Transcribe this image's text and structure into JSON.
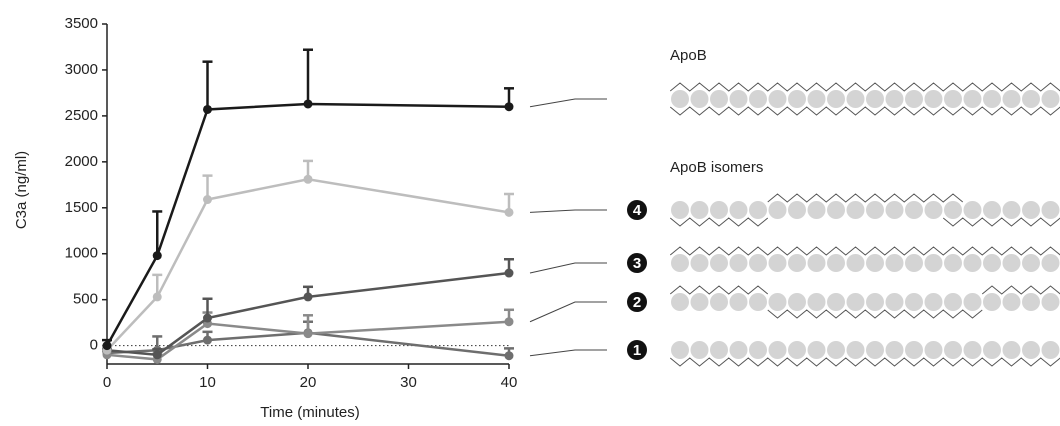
{
  "chart_data": {
    "type": "line",
    "ylabel": "C3a (ng/ml)",
    "xlabel": "Time (minutes)",
    "x": [
      0,
      5,
      10,
      20,
      40
    ],
    "xlim": [
      0,
      40
    ],
    "xticks": [
      0,
      10,
      20,
      30,
      40
    ],
    "ylim": [
      -200,
      3500
    ],
    "yticks": [
      0,
      500,
      1000,
      1500,
      2000,
      2500,
      3000,
      3500
    ],
    "zero_line": true,
    "isomers_label": "ApoB isomers",
    "series": [
      {
        "name": "ApoB",
        "color": "#1a1a1a",
        "values": [
          0,
          980,
          2570,
          2630,
          2600
        ],
        "errors": [
          60,
          480,
          520,
          590,
          200
        ]
      },
      {
        "badge": "4",
        "color": "#bdbdbd",
        "values": [
          -50,
          530,
          1590,
          1810,
          1450
        ],
        "errors": [
          40,
          240,
          260,
          200,
          200
        ]
      },
      {
        "badge": "3",
        "color": "#555555",
        "values": [
          -50,
          -100,
          300,
          530,
          790
        ],
        "errors": [
          40,
          60,
          210,
          110,
          150
        ]
      },
      {
        "badge": "2",
        "color": "#8a8a8a",
        "values": [
          -100,
          -150,
          240,
          130,
          260
        ],
        "errors": [
          40,
          60,
          120,
          200,
          130
        ]
      },
      {
        "badge": "1",
        "color": "#6e6e6e",
        "values": [
          -80,
          -50,
          60,
          140,
          -110
        ],
        "errors": [
          40,
          150,
          90,
          120,
          80
        ]
      }
    ]
  }
}
